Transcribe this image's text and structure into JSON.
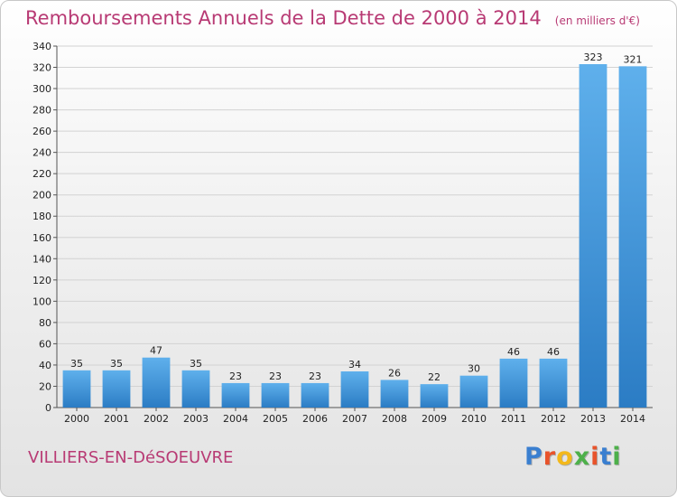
{
  "chart_data": {
    "type": "bar",
    "title": "Remboursements Annuels de la Dette de 2000 à 2014",
    "subtitle": "(en milliers d'€)",
    "categories": [
      "2000",
      "2001",
      "2002",
      "2003",
      "2004",
      "2005",
      "2006",
      "2007",
      "2008",
      "2009",
      "2010",
      "2011",
      "2012",
      "2013",
      "2014"
    ],
    "values": [
      35,
      35,
      47,
      35,
      23,
      23,
      23,
      34,
      26,
      22,
      30,
      46,
      46,
      323,
      321
    ],
    "ylim": [
      0,
      340
    ],
    "yticks": [
      "0",
      "20",
      "40",
      "60",
      "80",
      "100",
      "120",
      "140",
      "160",
      "180",
      "200",
      "220",
      "240",
      "260",
      "280",
      "300",
      "320",
      "340"
    ],
    "grid": true,
    "bar_color": "#3a8fd6"
  },
  "footer": {
    "town": "VILLIERS-EN-DéSOEUVRE",
    "logo": "Proxiti"
  }
}
